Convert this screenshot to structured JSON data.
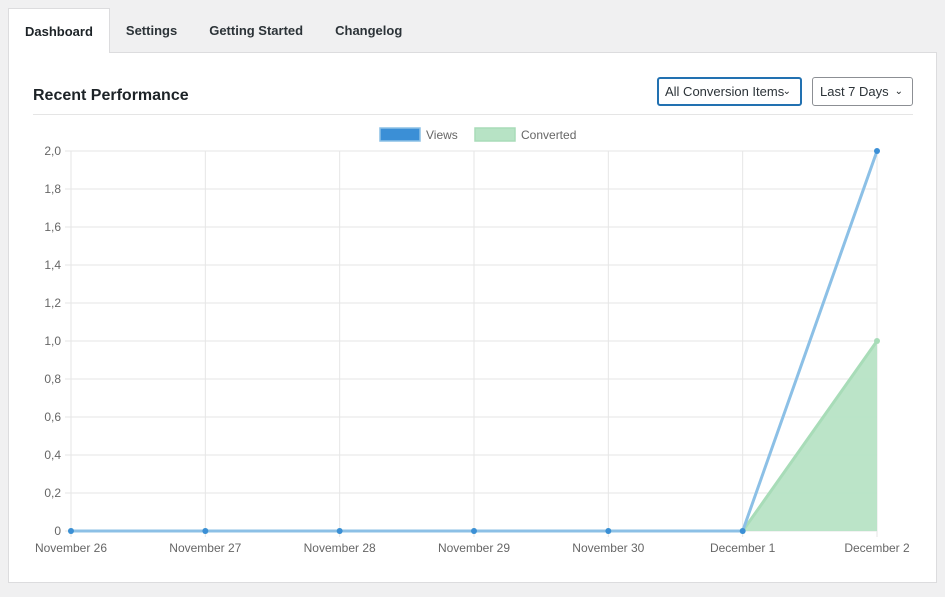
{
  "tabs": [
    {
      "label": "Dashboard",
      "active": true
    },
    {
      "label": "Settings",
      "active": false
    },
    {
      "label": "Getting Started",
      "active": false
    },
    {
      "label": "Changelog",
      "active": false
    }
  ],
  "panel": {
    "title": "Recent Performance",
    "filter_items": {
      "value": "All Conversion Items"
    },
    "filter_range": {
      "value": "Last 7 Days"
    }
  },
  "chart_data": {
    "type": "line",
    "title": "",
    "xlabel": "",
    "ylabel": "",
    "legend_position": "top",
    "grid": true,
    "categories": [
      "November 26",
      "November 27",
      "November 28",
      "November 29",
      "November 30",
      "December 1",
      "December 2"
    ],
    "ylim": [
      0,
      2
    ],
    "y_ticks": [
      "0",
      "0,2",
      "0,4",
      "0,6",
      "0,8",
      "1,0",
      "1,2",
      "1,4",
      "1,6",
      "1,8",
      "2,0"
    ],
    "series": [
      {
        "name": "Views",
        "values": [
          0,
          0,
          0,
          0,
          0,
          0,
          2
        ],
        "color": "#3b8fd6",
        "line_color": "#8cc0e6",
        "fill": false
      },
      {
        "name": "Converted",
        "values": [
          0,
          0,
          0,
          0,
          0,
          0,
          1
        ],
        "color": "#b7e3c5",
        "line_color": "#a8dcb8",
        "fill": true
      }
    ]
  }
}
